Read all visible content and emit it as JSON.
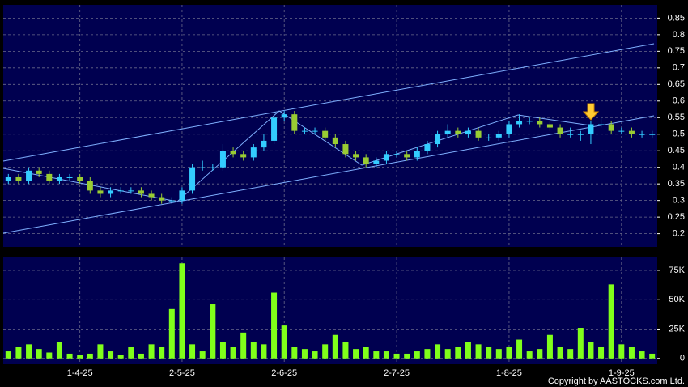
{
  "chart_data": [
    {
      "type": "candlestick",
      "open": [
        0.36,
        0.37,
        0.36,
        0.39,
        0.38,
        0.36,
        0.37,
        0.37,
        0.36,
        0.33,
        0.32,
        0.33,
        0.33,
        0.33,
        0.32,
        0.31,
        0.3,
        0.3,
        0.33,
        0.4,
        0.4,
        0.4,
        0.45,
        0.44,
        0.43,
        0.46,
        0.48,
        0.55,
        0.56,
        0.51,
        0.51,
        0.51,
        0.49,
        0.47,
        0.44,
        0.43,
        0.41,
        0.42,
        0.44,
        0.44,
        0.43,
        0.45,
        0.47,
        0.5,
        0.51,
        0.5,
        0.51,
        0.49,
        0.49,
        0.5,
        0.53,
        0.54,
        0.54,
        0.53,
        0.52,
        0.5,
        0.5,
        0.5,
        0.53,
        0.53,
        0.51,
        0.51,
        0.5,
        0.5
      ],
      "high": [
        0.38,
        0.38,
        0.4,
        0.4,
        0.39,
        0.38,
        0.38,
        0.38,
        0.37,
        0.34,
        0.34,
        0.34,
        0.34,
        0.34,
        0.33,
        0.32,
        0.31,
        0.34,
        0.41,
        0.42,
        0.41,
        0.47,
        0.46,
        0.45,
        0.47,
        0.5,
        0.57,
        0.57,
        0.57,
        0.52,
        0.52,
        0.52,
        0.5,
        0.48,
        0.45,
        0.44,
        0.43,
        0.45,
        0.45,
        0.45,
        0.46,
        0.48,
        0.51,
        0.53,
        0.52,
        0.52,
        0.52,
        0.5,
        0.51,
        0.54,
        0.56,
        0.55,
        0.55,
        0.54,
        0.53,
        0.52,
        0.51,
        0.54,
        0.55,
        0.54,
        0.52,
        0.52,
        0.51,
        0.51
      ],
      "low": [
        0.35,
        0.35,
        0.35,
        0.37,
        0.35,
        0.35,
        0.36,
        0.35,
        0.32,
        0.31,
        0.31,
        0.32,
        0.32,
        0.31,
        0.3,
        0.29,
        0.29,
        0.29,
        0.32,
        0.39,
        0.39,
        0.39,
        0.43,
        0.42,
        0.42,
        0.45,
        0.47,
        0.54,
        0.5,
        0.5,
        0.5,
        0.48,
        0.46,
        0.43,
        0.42,
        0.4,
        0.4,
        0.41,
        0.43,
        0.42,
        0.42,
        0.44,
        0.46,
        0.49,
        0.49,
        0.49,
        0.48,
        0.48,
        0.48,
        0.49,
        0.52,
        0.53,
        0.52,
        0.51,
        0.49,
        0.49,
        0.48,
        0.47,
        0.52,
        0.5,
        0.5,
        0.49,
        0.49,
        0.49
      ],
      "close": [
        0.37,
        0.36,
        0.39,
        0.38,
        0.36,
        0.37,
        0.37,
        0.36,
        0.33,
        0.32,
        0.33,
        0.33,
        0.33,
        0.32,
        0.31,
        0.3,
        0.3,
        0.33,
        0.4,
        0.4,
        0.4,
        0.45,
        0.44,
        0.43,
        0.46,
        0.48,
        0.55,
        0.56,
        0.51,
        0.51,
        0.51,
        0.49,
        0.47,
        0.44,
        0.43,
        0.41,
        0.42,
        0.44,
        0.44,
        0.43,
        0.45,
        0.47,
        0.5,
        0.51,
        0.5,
        0.51,
        0.49,
        0.49,
        0.5,
        0.53,
        0.54,
        0.54,
        0.53,
        0.52,
        0.5,
        0.5,
        0.5,
        0.53,
        0.53,
        0.51,
        0.51,
        0.5,
        0.5,
        0.5
      ],
      "up_color": "#33ccff",
      "down_color": "#99cc33",
      "ylim": [
        0.16,
        0.89
      ],
      "yticks": [
        0.2,
        0.25,
        0.3,
        0.35,
        0.4,
        0.45,
        0.5,
        0.55,
        0.6,
        0.65,
        0.7,
        0.75,
        0.8,
        0.85
      ],
      "grid": true
    },
    {
      "type": "bar",
      "categories": [
        null,
        null,
        null,
        null,
        null,
        null,
        null,
        "1-4-25",
        null,
        null,
        null,
        null,
        null,
        null,
        null,
        null,
        null,
        "2-5-25",
        null,
        null,
        null,
        null,
        null,
        null,
        null,
        null,
        null,
        "2-6-25",
        null,
        null,
        null,
        null,
        null,
        null,
        null,
        null,
        null,
        null,
        "2-7-25",
        null,
        null,
        null,
        null,
        null,
        null,
        null,
        null,
        null,
        null,
        "1-8-25",
        null,
        null,
        null,
        null,
        null,
        null,
        null,
        null,
        null,
        null,
        "1-9-25",
        null,
        null,
        null
      ],
      "values": [
        6000,
        10000,
        12000,
        8000,
        5000,
        14000,
        4000,
        3000,
        4000,
        12000,
        6000,
        3000,
        10000,
        4000,
        12000,
        10000,
        42000,
        81000,
        12000,
        6000,
        46000,
        14000,
        10000,
        22000,
        14000,
        12000,
        56000,
        28000,
        10000,
        8000,
        6000,
        12000,
        20000,
        14000,
        8000,
        10000,
        6000,
        6000,
        4000,
        4000,
        6000,
        8000,
        12000,
        8000,
        10000,
        14000,
        12000,
        10000,
        8000,
        10000,
        16000,
        6000,
        8000,
        20000,
        10000,
        8000,
        26000,
        14000,
        10000,
        63000,
        12000,
        10000,
        6000,
        4000
      ],
      "color": "#80ff1a",
      "ylim": [
        -5000,
        86000
      ],
      "yticks": [
        0,
        {
          "value": 25000,
          "label": "25K"
        },
        {
          "value": 50000,
          "label": "50K"
        },
        {
          "value": 75000,
          "label": "75K"
        }
      ],
      "grid": true
    }
  ],
  "copyright": "Copyright by AASTOCKS.com Ltd."
}
